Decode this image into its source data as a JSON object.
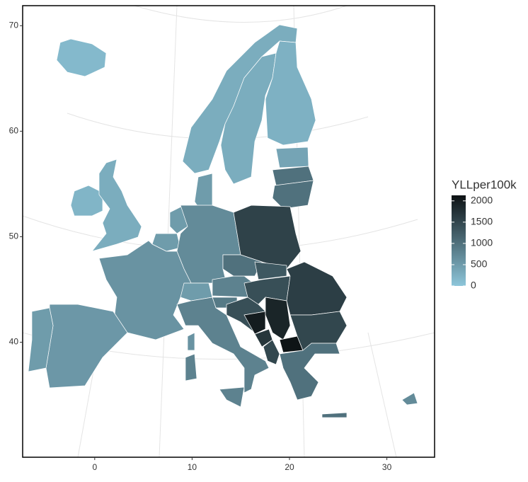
{
  "chart_data": {
    "type": "choropleth",
    "values": [
      150,
      200,
      300,
      300,
      300,
      250,
      400,
      1000,
      1000,
      500,
      500,
      500,
      700,
      1550,
      600,
      550,
      500,
      500,
      800,
      1000,
      1300,
      1400,
      900,
      1400,
      2000,
      1900,
      1700,
      1500,
      2100,
      1600,
      1500,
      1000,
      800,
      700
    ],
    "low_color": "#8dc6da",
    "high_color": "#0c1113",
    "xlim": [
      -7.4,
      34.9
    ],
    "xticks": [
      0,
      10,
      20,
      30
    ],
    "ylim": [
      29.1,
      71.9
    ],
    "yticks": [
      40,
      50,
      60,
      70
    ],
    "legend_title": "YLLper100k",
    "legend_lim": [
      0,
      2130
    ],
    "legend_ticks": [
      0,
      500,
      1000,
      1500,
      2000
    ]
  }
}
